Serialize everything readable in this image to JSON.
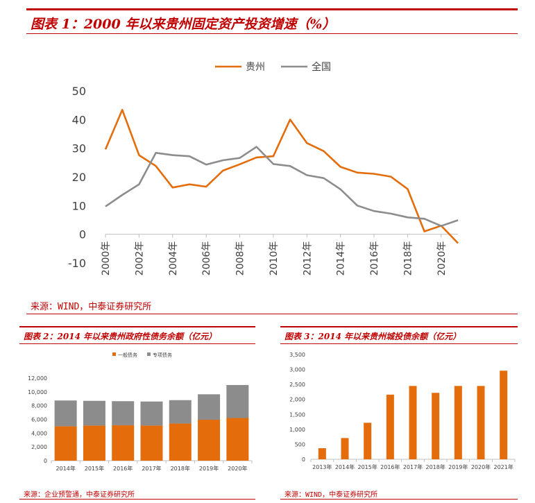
{
  "colors": {
    "accent": "#c00000",
    "orange": "#e46c0a",
    "gray": "#8c8c8c",
    "axis": "#bfbfbf"
  },
  "figure1": {
    "title": "图表 1：2000 年以来贵州固定资产投资增速（%）",
    "source": "来源：WIND，中泰证券研究所"
  },
  "figure2": {
    "title": "图表 2：2014 年以来贵州政府性债务余额（亿元）",
    "source": "来源：企业预警通，中泰证券研究所"
  },
  "figure3": {
    "title": "图表 3：2014 年以来贵州城投债余额（亿元）",
    "source": "来源：WIND，中泰证券研究所"
  },
  "chart_data": [
    {
      "type": "line",
      "legend_position": "top",
      "grid": false,
      "ylim": [
        -10,
        50
      ],
      "yticks": [
        "-10",
        "0",
        "10",
        "20",
        "30",
        "40",
        "50"
      ],
      "x": [
        2000,
        2001,
        2002,
        2003,
        2004,
        2005,
        2006,
        2007,
        2008,
        2009,
        2010,
        2011,
        2012,
        2013,
        2014,
        2015,
        2016,
        2017,
        2018,
        2019,
        2020,
        2021
      ],
      "xtick_values": [
        2000,
        2002,
        2004,
        2006,
        2008,
        2010,
        2012,
        2014,
        2016,
        2018,
        2020
      ],
      "xtick_labels": [
        "2000年",
        "2002年",
        "2004年",
        "2006年",
        "2008年",
        "2010年",
        "2012年",
        "2014年",
        "2016年",
        "2018年",
        "2020年"
      ],
      "series": [
        {
          "name": "贵州",
          "color": "#e46c0a",
          "values": [
            29.6,
            43.4,
            27.6,
            23.8,
            16.3,
            17.4,
            16.6,
            22.2,
            24.4,
            26.8,
            27.2,
            40.0,
            31.8,
            29.0,
            23.5,
            21.5,
            21.1,
            20.1,
            15.8,
            1.0,
            3.0,
            -3.1
          ]
        },
        {
          "name": "全国",
          "color": "#8c8c8c",
          "values": [
            9.7,
            13.7,
            17.4,
            28.4,
            27.6,
            27.2,
            24.3,
            25.8,
            26.6,
            30.5,
            24.5,
            23.8,
            20.6,
            19.6,
            15.7,
            10.0,
            8.1,
            7.2,
            5.9,
            5.4,
            2.9,
            4.9
          ]
        }
      ]
    },
    {
      "type": "bar",
      "stacked": true,
      "legend_position": "top",
      "ylim": [
        0,
        12000
      ],
      "yticks": [
        "0",
        "2,000",
        "4,000",
        "6,000",
        "8,000",
        "10,000",
        "12,000"
      ],
      "categories": [
        "2014年",
        "2015年",
        "2016年",
        "2017年",
        "2018年",
        "2019年",
        "2020年"
      ],
      "series": [
        {
          "name": "一般债务",
          "color": "#e46c0a",
          "values": [
            5000,
            5100,
            5150,
            5100,
            5400,
            5950,
            6200
          ]
        },
        {
          "name": "专项债务",
          "color": "#8c8c8c",
          "values": [
            3750,
            3600,
            3500,
            3500,
            3400,
            3700,
            4800
          ]
        }
      ]
    },
    {
      "type": "bar",
      "ylim": [
        0,
        3500
      ],
      "yticks": [
        "0",
        "500",
        "1,000",
        "1,500",
        "2,000",
        "2,500",
        "3,000",
        "3,500"
      ],
      "categories": [
        "2013年",
        "2014年",
        "2015年",
        "2016年",
        "2017年",
        "2018年",
        "2019年",
        "2020年",
        "2021年"
      ],
      "series": [
        {
          "color": "#e46c0a",
          "values": [
            370,
            710,
            1220,
            2160,
            2450,
            2220,
            2450,
            2450,
            2960
          ]
        }
      ]
    }
  ]
}
